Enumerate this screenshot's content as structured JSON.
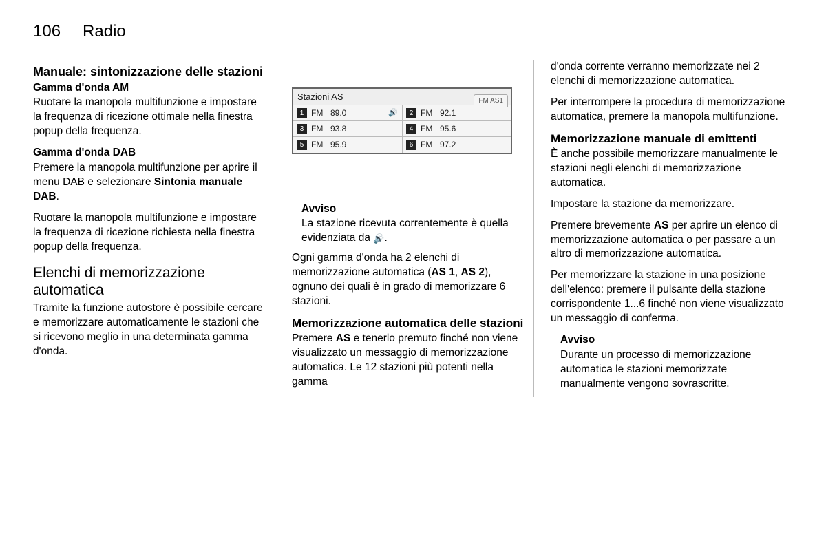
{
  "page": {
    "number": "106",
    "section": "Radio"
  },
  "col1": {
    "h1": "Manuale: sintonizzazione delle stazioni",
    "am_title": "Gamma d'onda AM",
    "am_text": "Ruotare la manopola multifunzione e impostare la frequenza di ricezione ottimale nella finestra popup della frequenza.",
    "dab_title": "Gamma d'onda DAB",
    "dab_text1a": "Premere la manopola multifunzione per aprire il menu DAB e selezionare ",
    "dab_text1b": "Sintonia manuale DAB",
    "dab_text1c": ".",
    "dab_text2": "Ruotare la manopola multifunzione e impostare la frequenza di ricezione richiesta nella finestra popup della frequenza.",
    "autostore_title": "Elenchi di memorizzazione automatica",
    "autostore_text": "Tramite la funzione autostore è possibile cercare e memorizzare automaticamente le stazioni che si ricevono meglio in una determinata gamma d'onda."
  },
  "radio": {
    "title": "Stazioni AS",
    "tab": "FM AS1",
    "band": "FM",
    "rows": [
      {
        "left": {
          "n": "1",
          "f": "89.0",
          "sp": true
        },
        "right": {
          "n": "2",
          "f": "92.1"
        }
      },
      {
        "left": {
          "n": "3",
          "f": "93.8"
        },
        "right": {
          "n": "4",
          "f": "95.6"
        }
      },
      {
        "left": {
          "n": "5",
          "f": "95.9"
        },
        "right": {
          "n": "6",
          "f": "97.2"
        }
      }
    ]
  },
  "col2": {
    "avviso_label": "Avviso",
    "avviso_text_a": "La stazione ricevuta correntemente è quella evidenziata da ",
    "avviso_text_b": ".",
    "p1a": "Ogni gamma d'onda ha 2 elenchi di memorizzazione automatica (",
    "p1b": "AS 1",
    "p1c": ", ",
    "p1d": "AS 2",
    "p1e": "), ognuno dei quali è in grado di memorizzare 6 stazioni.",
    "h2": "Memorizzazione automatica delle stazioni",
    "p2a": "Premere ",
    "p2b": "AS",
    "p2c": " e tenerlo premuto finché non viene visualizzato un messaggio di memorizzazione automatica. Le 12 stazioni più potenti nella gamma"
  },
  "col3": {
    "p1": "d'onda corrente verranno memorizzate nei 2 elenchi di memorizzazione automatica.",
    "p2": "Per interrompere la procedura di memorizzazione automatica, premere la manopola multifunzione.",
    "h1": "Memorizzazione manuale di emittenti",
    "p3": "È anche possibile memorizzare manualmente le stazioni negli elenchi di memorizzazione automatica.",
    "p4": "Impostare la stazione da memorizzare.",
    "p5a": "Premere brevemente ",
    "p5b": "AS",
    "p5c": " per aprire un elenco di memorizzazione automatica o per passare a un altro di memorizzazione automatica.",
    "p6": "Per memorizzare la stazione in una posizione dell'elenco: premere il pulsante della stazione corrispondente 1...6 finché non viene visualizzato un messaggio di conferma.",
    "avviso_label": "Avviso",
    "avviso_text": "Durante un processo di memorizzazione automatica le stazioni memorizzate manualmente vengono sovrascritte."
  },
  "icons": {
    "speaker": "🔊"
  }
}
